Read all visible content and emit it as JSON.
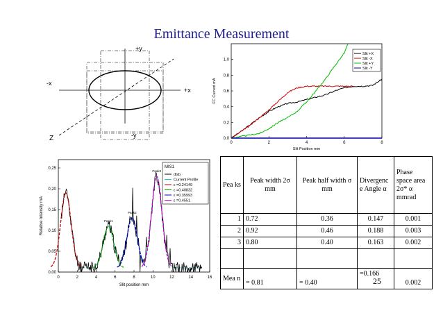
{
  "slide": {
    "title": "Emittance Measurement",
    "page_number": "25"
  },
  "ellipse_diagram": {
    "axis_plus_y": "+y",
    "axis_minus_y": "-y",
    "axis_plus_x": "+x",
    "axis_minus_x": "-x",
    "axis_z": "Z"
  },
  "chart_data": [
    {
      "type": "line",
      "ylabel": "FC Current mA",
      "xlabel": "Slit Position mm",
      "xlim": [
        0,
        8
      ],
      "ylim": [
        0,
        1.2
      ],
      "x_ticks": [
        "0",
        "2",
        "4",
        "6",
        "8"
      ],
      "y_ticks": [
        "0,0",
        "0,2",
        "0,4",
        "0,6",
        "0,8",
        "1,0"
      ],
      "legend_position": "top-right",
      "series": [
        {
          "name": "Slit +X",
          "color": "#000000",
          "x": [
            0,
            0.5,
            1,
            1.5,
            2,
            2.5,
            3,
            3.5,
            4,
            4.5,
            5,
            5.5,
            6,
            6.5,
            7,
            7.5,
            8
          ],
          "y": [
            0.0,
            0.08,
            0.17,
            0.26,
            0.34,
            0.4,
            0.44,
            0.46,
            0.49,
            0.52,
            0.55,
            0.6,
            0.64,
            0.66,
            0.66,
            0.67,
            0.75
          ]
        },
        {
          "name": "Slit -X",
          "color": "#cc0000",
          "x": [
            0,
            0.5,
            1,
            1.5,
            2,
            2.5,
            3,
            3.5,
            4,
            4.5,
            5,
            5.5,
            6,
            6.5
          ],
          "y": [
            0.0,
            0.08,
            0.16,
            0.26,
            0.36,
            0.47,
            0.58,
            0.64,
            0.66,
            0.66,
            0.66,
            0.66,
            0.66,
            0.66
          ]
        },
        {
          "name": "Slit +Y",
          "color": "#00bb00",
          "x": [
            0,
            0.5,
            1,
            1.5,
            2,
            2.5,
            3,
            3.5,
            4,
            4.5,
            5,
            5.5,
            6,
            6.2
          ],
          "y": [
            0.0,
            0.02,
            0.04,
            0.06,
            0.12,
            0.2,
            0.26,
            0.34,
            0.46,
            0.6,
            0.75,
            0.92,
            1.08,
            1.2
          ]
        },
        {
          "name": "Slit -Y",
          "color": "#0000aa",
          "x": [
            0,
            8
          ],
          "y": [
            0.0,
            0.0
          ]
        }
      ]
    },
    {
      "type": "line",
      "ylabel": "Relative Intensity mA",
      "xlabel": "Slit position mm",
      "xlim": [
        0,
        16
      ],
      "ylim": [
        0,
        0.27
      ],
      "x_ticks": [
        "0",
        "2",
        "4",
        "6",
        "8",
        "10",
        "12",
        "14",
        "16"
      ],
      "y_ticks": [
        "0,00",
        "0,05",
        "0,10",
        "0,15",
        "0,20",
        "0,25"
      ],
      "legend_title": "MIS1",
      "legend_position": "top-right",
      "peak_labels": [
        "Peak1",
        "Peak2",
        "Peak3"
      ],
      "series": [
        {
          "name": "disb",
          "color": "#000000"
        },
        {
          "name": "Current Profile",
          "color": "#00cccc"
        },
        {
          "name": "ε =0.24149",
          "color": "#cc0000",
          "peak_center": 0.8,
          "peak_height": 0.18
        },
        {
          "name": "ε =0.40832",
          "color": "#00aa00",
          "peak_center": 5.3,
          "peak_height": 0.1
        },
        {
          "name": "ε =0.35993",
          "color": "#0000cc",
          "peak_center": 7.8,
          "peak_height": 0.12
        },
        {
          "name": "ε =0.4551",
          "color": "#cc00cc",
          "peak_center": 10.4,
          "peak_height": 0.22
        }
      ]
    }
  ],
  "table": {
    "headers": [
      "Pea ks",
      "Peak width 2σ mm",
      "Peak half width σ mm",
      "Divergenc e Angle α",
      "Phase space area 2σ* α mmrad"
    ],
    "rows": [
      [
        "1",
        "0.72",
        "0.36",
        "0.147",
        "0.001"
      ],
      [
        "2",
        "0.92",
        "0.46",
        "0.188",
        "0.003"
      ],
      [
        "3",
        "0.80",
        "0.40",
        "0.163",
        "0.002"
      ],
      [
        "",
        "",
        "",
        "",
        ""
      ],
      [
        "Mea n",
        "= 0.81",
        "= 0.40",
        "=0.166",
        "0.002"
      ]
    ]
  }
}
